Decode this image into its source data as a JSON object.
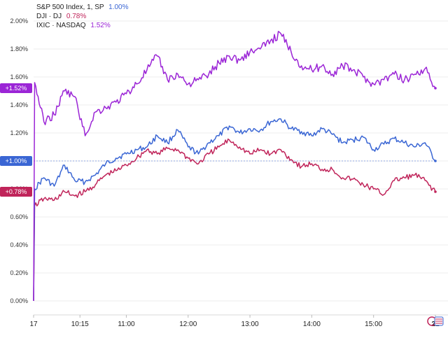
{
  "legend": [
    {
      "label": "S&P 500 Index, 1, SP",
      "value": "1.00%",
      "color": "#3a66d4"
    },
    {
      "label": "DJI · DJ",
      "value": "0.78%",
      "color": "#c0245a"
    },
    {
      "label": "IXIC · NASDAQ",
      "value": "1.52%",
      "color": "#9b25d6"
    }
  ],
  "badges": [
    "+1.52%",
    "+1.00%",
    "+0.78%"
  ],
  "chart_data": {
    "type": "line",
    "ylim": [
      0,
      2.0
    ],
    "yticks": [
      "0.00%",
      "0.20%",
      "0.40%",
      "0.60%",
      "0.80%",
      "1.00%",
      "1.20%",
      "1.40%",
      "1.60%",
      "1.80%",
      "2.00%"
    ],
    "xticks": [
      "17",
      "10:15",
      "11:00",
      "12:00",
      "13:00",
      "14:00",
      "15:00",
      "21"
    ],
    "grid": true,
    "legend_position": "top-left",
    "series": [
      {
        "name": "S&P 500 Index, 1, SP",
        "color": "#3a66d4",
        "last": 1.0,
        "points": [
          [
            "09:30",
            0.0
          ],
          [
            "09:31",
            0.8
          ],
          [
            "09:40",
            0.88
          ],
          [
            "09:50",
            0.82
          ],
          [
            "10:00",
            0.97
          ],
          [
            "10:10",
            0.86
          ],
          [
            "10:20",
            0.85
          ],
          [
            "10:30",
            0.9
          ],
          [
            "10:40",
            0.98
          ],
          [
            "10:50",
            1.02
          ],
          [
            "11:00",
            1.05
          ],
          [
            "11:10",
            1.08
          ],
          [
            "11:20",
            1.1
          ],
          [
            "11:30",
            1.18
          ],
          [
            "11:40",
            1.13
          ],
          [
            "11:50",
            1.22
          ],
          [
            "12:00",
            1.1
          ],
          [
            "12:10",
            1.05
          ],
          [
            "12:20",
            1.13
          ],
          [
            "12:30",
            1.18
          ],
          [
            "12:40",
            1.25
          ],
          [
            "12:50",
            1.2
          ],
          [
            "13:00",
            1.23
          ],
          [
            "13:10",
            1.22
          ],
          [
            "13:20",
            1.28
          ],
          [
            "13:30",
            1.3
          ],
          [
            "13:40",
            1.23
          ],
          [
            "13:50",
            1.21
          ],
          [
            "14:00",
            1.18
          ],
          [
            "14:10",
            1.23
          ],
          [
            "14:20",
            1.19
          ],
          [
            "14:30",
            1.13
          ],
          [
            "14:40",
            1.15
          ],
          [
            "14:50",
            1.17
          ],
          [
            "15:00",
            1.08
          ],
          [
            "15:10",
            1.12
          ],
          [
            "15:20",
            1.16
          ],
          [
            "15:30",
            1.13
          ],
          [
            "15:40",
            1.1
          ],
          [
            "15:50",
            1.13
          ],
          [
            "16:00",
            1.0
          ]
        ]
      },
      {
        "name": "DJI · DJ",
        "color": "#c0245a",
        "last": 0.78,
        "points": [
          [
            "09:30",
            0.0
          ],
          [
            "09:31",
            0.68
          ],
          [
            "09:40",
            0.73
          ],
          [
            "09:50",
            0.72
          ],
          [
            "10:00",
            0.78
          ],
          [
            "10:10",
            0.75
          ],
          [
            "10:20",
            0.78
          ],
          [
            "10:30",
            0.83
          ],
          [
            "10:40",
            0.9
          ],
          [
            "10:50",
            0.93
          ],
          [
            "11:00",
            0.97
          ],
          [
            "11:10",
            1.02
          ],
          [
            "11:20",
            1.08
          ],
          [
            "11:30",
            1.05
          ],
          [
            "11:40",
            1.09
          ],
          [
            "11:50",
            1.08
          ],
          [
            "12:00",
            1.02
          ],
          [
            "12:10",
            0.98
          ],
          [
            "12:20",
            1.05
          ],
          [
            "12:30",
            1.1
          ],
          [
            "12:40",
            1.15
          ],
          [
            "12:50",
            1.1
          ],
          [
            "13:00",
            1.05
          ],
          [
            "13:10",
            1.08
          ],
          [
            "13:20",
            1.05
          ],
          [
            "13:30",
            1.08
          ],
          [
            "13:40",
            1.01
          ],
          [
            "13:50",
            0.96
          ],
          [
            "14:00",
            0.98
          ],
          [
            "14:10",
            0.94
          ],
          [
            "14:20",
            0.94
          ],
          [
            "14:30",
            0.88
          ],
          [
            "14:40",
            0.87
          ],
          [
            "14:50",
            0.83
          ],
          [
            "15:00",
            0.8
          ],
          [
            "15:10",
            0.76
          ],
          [
            "15:20",
            0.86
          ],
          [
            "15:30",
            0.88
          ],
          [
            "15:40",
            0.9
          ],
          [
            "15:50",
            0.86
          ],
          [
            "16:00",
            0.78
          ]
        ]
      },
      {
        "name": "IXIC · NASDAQ",
        "color": "#9b25d6",
        "last": 1.52,
        "points": [
          [
            "09:30",
            0.0
          ],
          [
            "09:31",
            1.56
          ],
          [
            "09:40",
            1.28
          ],
          [
            "09:50",
            1.33
          ],
          [
            "10:00",
            1.5
          ],
          [
            "10:10",
            1.46
          ],
          [
            "10:20",
            1.18
          ],
          [
            "10:30",
            1.35
          ],
          [
            "10:40",
            1.38
          ],
          [
            "10:50",
            1.42
          ],
          [
            "11:00",
            1.48
          ],
          [
            "11:10",
            1.55
          ],
          [
            "11:20",
            1.65
          ],
          [
            "11:30",
            1.75
          ],
          [
            "11:40",
            1.58
          ],
          [
            "11:50",
            1.62
          ],
          [
            "12:00",
            1.55
          ],
          [
            "12:10",
            1.58
          ],
          [
            "12:20",
            1.62
          ],
          [
            "12:30",
            1.7
          ],
          [
            "12:40",
            1.75
          ],
          [
            "12:50",
            1.72
          ],
          [
            "13:00",
            1.78
          ],
          [
            "13:10",
            1.8
          ],
          [
            "13:20",
            1.86
          ],
          [
            "13:30",
            1.91
          ],
          [
            "13:40",
            1.78
          ],
          [
            "13:50",
            1.68
          ],
          [
            "14:00",
            1.65
          ],
          [
            "14:10",
            1.68
          ],
          [
            "14:20",
            1.62
          ],
          [
            "14:30",
            1.68
          ],
          [
            "14:40",
            1.65
          ],
          [
            "14:50",
            1.6
          ],
          [
            "15:00",
            1.55
          ],
          [
            "15:10",
            1.58
          ],
          [
            "15:20",
            1.62
          ],
          [
            "15:30",
            1.58
          ],
          [
            "15:40",
            1.62
          ],
          [
            "15:50",
            1.66
          ],
          [
            "16:00",
            1.52
          ]
        ]
      }
    ]
  }
}
